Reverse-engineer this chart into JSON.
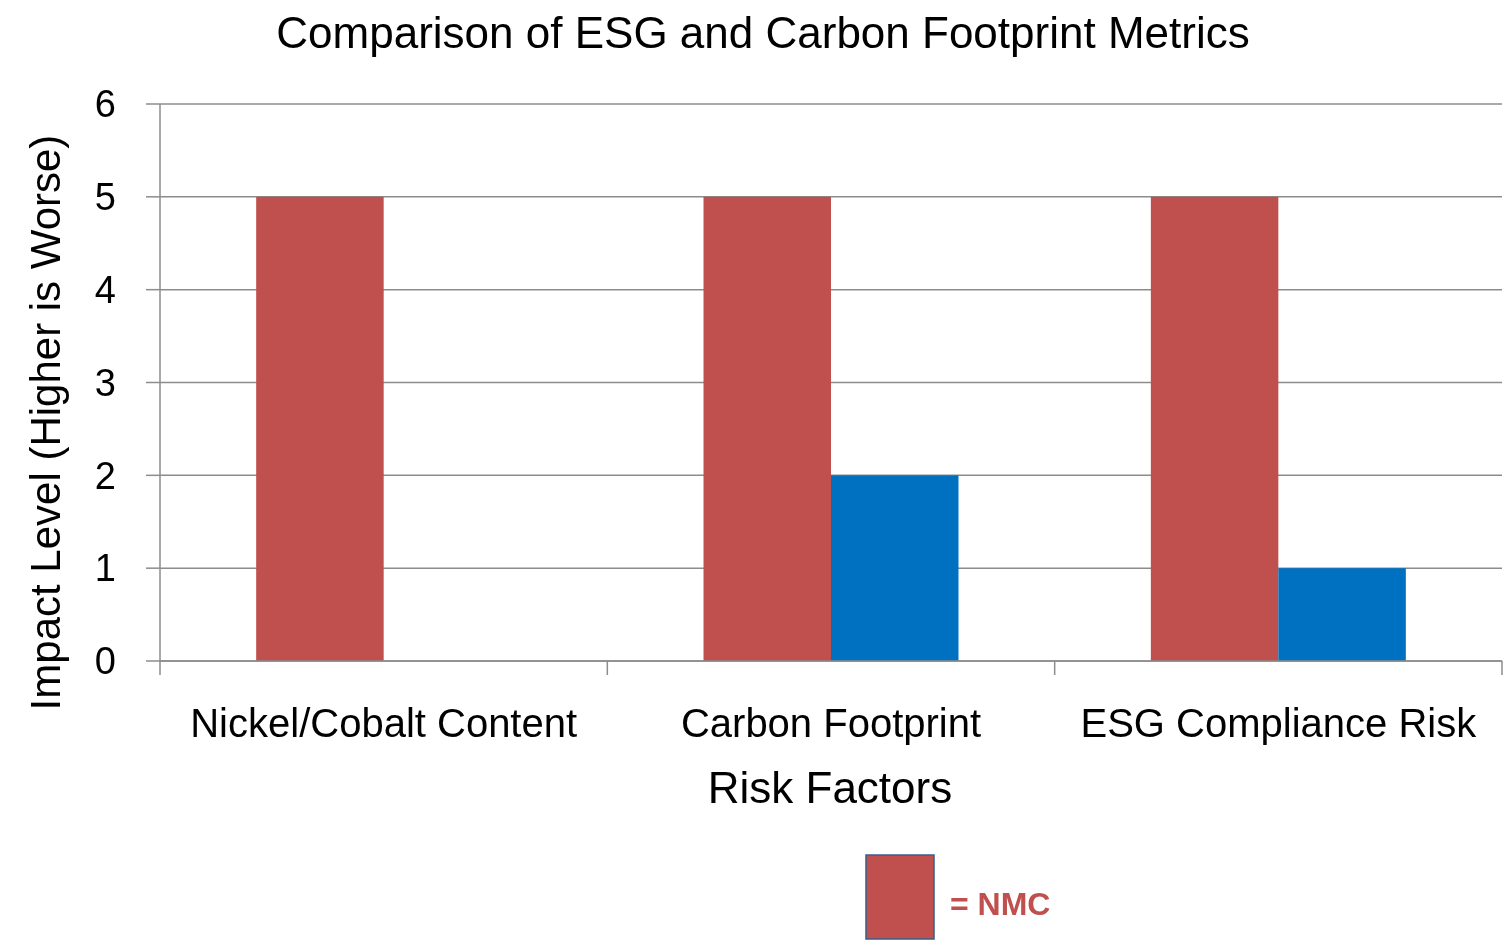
{
  "chart_data": {
    "type": "bar",
    "title": "Comparison of ESG and Carbon Footprint Metrics",
    "xlabel": "Risk Factors",
    "ylabel": "Impact Level (Higher is Worse)",
    "categories": [
      "Nickel/Cobalt Content",
      "Carbon Footprint",
      "ESG Compliance Risk"
    ],
    "series": [
      {
        "name": "= NMC",
        "color": "#c0504d",
        "values": [
          5,
          5,
          5
        ]
      },
      {
        "color": "#0070c0",
        "values": [
          null,
          2,
          1
        ]
      }
    ],
    "ylim": [
      0,
      6
    ],
    "yticks": [
      0,
      1,
      2,
      3,
      4,
      5,
      6
    ],
    "grid": "y",
    "legend": "bottom right"
  }
}
